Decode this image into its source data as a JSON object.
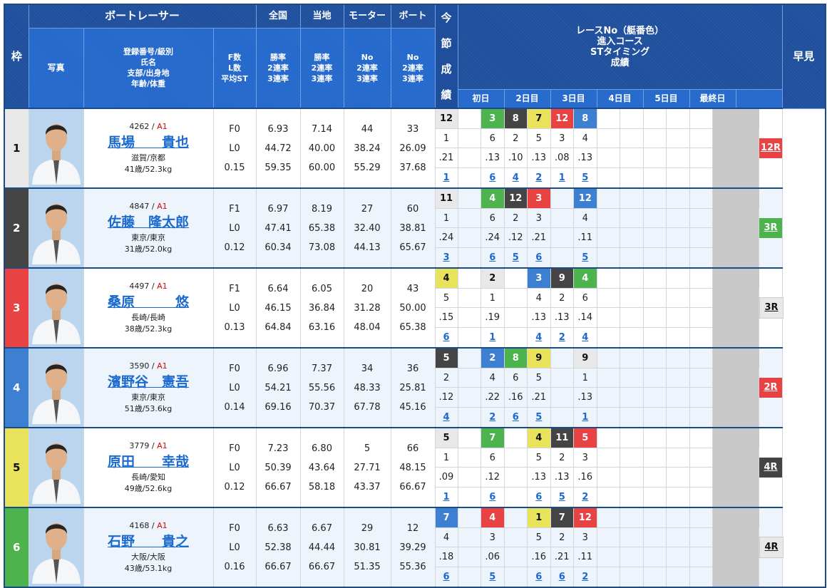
{
  "header": {
    "frame": "枠",
    "racer": "ボートレーサー",
    "national": "全国",
    "local": "当地",
    "motor": "モーター",
    "boat": "ボート",
    "photo": "写真",
    "info_lines": [
      "登録番号/級別",
      "氏名",
      "支部/出身地",
      "年齢/体重"
    ],
    "fl_lines": [
      "F数",
      "L数",
      "平均ST"
    ],
    "rate_lines": [
      "勝率",
      "2連率",
      "3連率"
    ],
    "no_lines": [
      "No",
      "2連率",
      "3連率"
    ],
    "race_lines": [
      "レースNo（艇番色）",
      "進入コース",
      "STタイミング",
      "成績"
    ],
    "hayami": "早見",
    "days": [
      "初日",
      "2日目",
      "3日目",
      "4日目",
      "5日目",
      "最終日",
      ""
    ],
    "strip": [
      "今",
      "節",
      "成",
      "績"
    ]
  },
  "boat_colors": {
    "1": {
      "bg": "#e8e8e8",
      "fg": "#111"
    },
    "2": {
      "bg": "#444444",
      "fg": "#fff"
    },
    "3": {
      "bg": "#e84242",
      "fg": "#fff"
    },
    "4": {
      "bg": "#3d80d2",
      "fg": "#fff"
    },
    "5": {
      "bg": "#e9e35c",
      "fg": "#111"
    },
    "6": {
      "bg": "#4db34d",
      "fg": "#fff"
    }
  },
  "racers": [
    {
      "frame": "1",
      "reg": "4262",
      "cls": "A1",
      "name": "馬場　　貴也",
      "branch": "滋賀/京都",
      "age": "41歳/52.3kg",
      "f": "F0",
      "l": "L0",
      "st": "0.15",
      "national": [
        "6.93",
        "44.72",
        "59.35"
      ],
      "local": [
        "7.14",
        "40.00",
        "60.00"
      ],
      "motor": [
        "44",
        "38.24",
        "55.29"
      ],
      "boat": [
        "33",
        "26.09",
        "37.68"
      ],
      "slots": [
        {
          "race": "12",
          "boat": 1,
          "course": "1",
          "st": ".21",
          "result": "1"
        },
        null,
        {
          "race": "3",
          "boat": 6,
          "course": "6",
          "st": ".13",
          "result": "6"
        },
        {
          "race": "8",
          "boat": 2,
          "course": "2",
          "st": ".10",
          "result": "4"
        },
        {
          "race": "7",
          "boat": 5,
          "course": "5",
          "st": ".13",
          "result": "2"
        },
        {
          "race": "12",
          "boat": 3,
          "course": "3",
          "st": ".08",
          "result": "1"
        },
        {
          "race": "8",
          "boat": 4,
          "course": "4",
          "st": ".13",
          "result": "5"
        },
        null,
        null,
        null,
        null,
        null
      ],
      "hayami": {
        "label": "12R",
        "boat": 3
      }
    },
    {
      "frame": "2",
      "reg": "4847",
      "cls": "A1",
      "name": "佐藤　隆太郎",
      "branch": "東京/東京",
      "age": "31歳/52.0kg",
      "f": "F1",
      "l": "L0",
      "st": "0.12",
      "national": [
        "6.97",
        "47.41",
        "60.34"
      ],
      "local": [
        "8.19",
        "65.38",
        "73.08"
      ],
      "motor": [
        "27",
        "32.40",
        "44.13"
      ],
      "boat": [
        "60",
        "38.81",
        "65.67"
      ],
      "slots": [
        {
          "race": "11",
          "boat": 1,
          "course": "1",
          "st": ".24",
          "result": "3"
        },
        null,
        {
          "race": "4",
          "boat": 6,
          "course": "6",
          "st": ".24",
          "result": "6"
        },
        {
          "race": "12",
          "boat": 2,
          "course": "2",
          "st": ".12",
          "result": "5"
        },
        {
          "race": "3",
          "boat": 3,
          "course": "3",
          "st": ".21",
          "result": "6"
        },
        null,
        {
          "race": "12",
          "boat": 4,
          "course": "4",
          "st": ".11",
          "result": "5"
        },
        null,
        null,
        null,
        null,
        null
      ],
      "hayami": {
        "label": "3R",
        "boat": 6
      }
    },
    {
      "frame": "3",
      "reg": "4497",
      "cls": "A1",
      "name": "桑原　　　悠",
      "branch": "長崎/長崎",
      "age": "38歳/52.3kg",
      "f": "F1",
      "l": "L0",
      "st": "0.13",
      "national": [
        "6.64",
        "46.15",
        "64.84"
      ],
      "local": [
        "6.05",
        "36.84",
        "63.16"
      ],
      "motor": [
        "20",
        "31.28",
        "48.04"
      ],
      "boat": [
        "43",
        "50.00",
        "65.38"
      ],
      "slots": [
        {
          "race": "4",
          "boat": 5,
          "course": "5",
          "st": ".15",
          "result": "6"
        },
        null,
        {
          "race": "2",
          "boat": 1,
          "course": "1",
          "st": ".19",
          "result": "1"
        },
        null,
        {
          "race": "3",
          "boat": 4,
          "course": "4",
          "st": ".13",
          "result": "4"
        },
        {
          "race": "9",
          "boat": 2,
          "course": "2",
          "st": ".13",
          "result": "2"
        },
        {
          "race": "4",
          "boat": 6,
          "course": "6",
          "st": ".14",
          "result": "4"
        },
        null,
        null,
        null,
        null,
        null
      ],
      "hayami": {
        "label": "3R",
        "boat": 1
      }
    },
    {
      "frame": "4",
      "reg": "3590",
      "cls": "A1",
      "name": "濱野谷　憲吾",
      "branch": "東京/東京",
      "age": "51歳/53.6kg",
      "f": "F0",
      "l": "L0",
      "st": "0.14",
      "national": [
        "6.96",
        "54.21",
        "69.16"
      ],
      "local": [
        "7.37",
        "55.56",
        "70.37"
      ],
      "motor": [
        "34",
        "48.33",
        "67.78"
      ],
      "boat": [
        "36",
        "25.81",
        "45.16"
      ],
      "slots": [
        {
          "race": "5",
          "boat": 2,
          "course": "2",
          "st": ".12",
          "result": "4"
        },
        null,
        {
          "race": "2",
          "boat": 4,
          "course": "4",
          "st": ".22",
          "result": "2"
        },
        {
          "race": "8",
          "boat": 6,
          "course": "6",
          "st": ".16",
          "result": "6"
        },
        {
          "race": "9",
          "boat": 5,
          "course": "5",
          "st": ".21",
          "result": "5"
        },
        null,
        {
          "race": "9",
          "boat": 1,
          "course": "1",
          "st": ".13",
          "result": "1"
        },
        null,
        null,
        null,
        null,
        null
      ],
      "hayami": {
        "label": "2R",
        "boat": 3
      }
    },
    {
      "frame": "5",
      "reg": "3779",
      "cls": "A1",
      "name": "原田　　幸哉",
      "branch": "長崎/愛知",
      "age": "49歳/52.6kg",
      "f": "F0",
      "l": "L0",
      "st": "0.12",
      "national": [
        "7.23",
        "50.39",
        "66.67"
      ],
      "local": [
        "6.80",
        "43.64",
        "58.18"
      ],
      "motor": [
        "5",
        "27.71",
        "43.37"
      ],
      "boat": [
        "66",
        "48.15",
        "66.67"
      ],
      "slots": [
        {
          "race": "5",
          "boat": 1,
          "course": "1",
          "st": ".09",
          "result": "1"
        },
        null,
        {
          "race": "7",
          "boat": 6,
          "course": "6",
          "st": ".12",
          "result": "6"
        },
        null,
        {
          "race": "4",
          "boat": 5,
          "course": "5",
          "st": ".13",
          "result": "6"
        },
        {
          "race": "11",
          "boat": 2,
          "course": "2",
          "st": ".13",
          "result": "5"
        },
        {
          "race": "5",
          "boat": 3,
          "course": "3",
          "st": ".16",
          "result": "2"
        },
        null,
        null,
        null,
        null,
        null
      ],
      "hayami": {
        "label": "4R",
        "boat": 2
      }
    },
    {
      "frame": "6",
      "reg": "4168",
      "cls": "A1",
      "name": "石野　　貴之",
      "branch": "大阪/大阪",
      "age": "43歳/53.1kg",
      "f": "F0",
      "l": "L0",
      "st": "0.16",
      "national": [
        "6.63",
        "52.38",
        "66.67"
      ],
      "local": [
        "6.67",
        "44.44",
        "66.67"
      ],
      "motor": [
        "29",
        "30.81",
        "51.35"
      ],
      "boat": [
        "12",
        "39.29",
        "55.36"
      ],
      "slots": [
        {
          "race": "7",
          "boat": 4,
          "course": "4",
          "st": ".18",
          "result": "6"
        },
        null,
        {
          "race": "4",
          "boat": 3,
          "course": "3",
          "st": ".06",
          "result": "5"
        },
        null,
        {
          "race": "1",
          "boat": 5,
          "course": "5",
          "st": ".16",
          "result": "6"
        },
        {
          "race": "7",
          "boat": 2,
          "course": "2",
          "st": ".21",
          "result": "6"
        },
        {
          "race": "12",
          "boat": 3,
          "course": "3",
          "st": ".11",
          "result": "2"
        },
        null,
        null,
        null,
        null,
        null
      ],
      "hayami": {
        "label": "4R",
        "boat": 1
      }
    }
  ]
}
